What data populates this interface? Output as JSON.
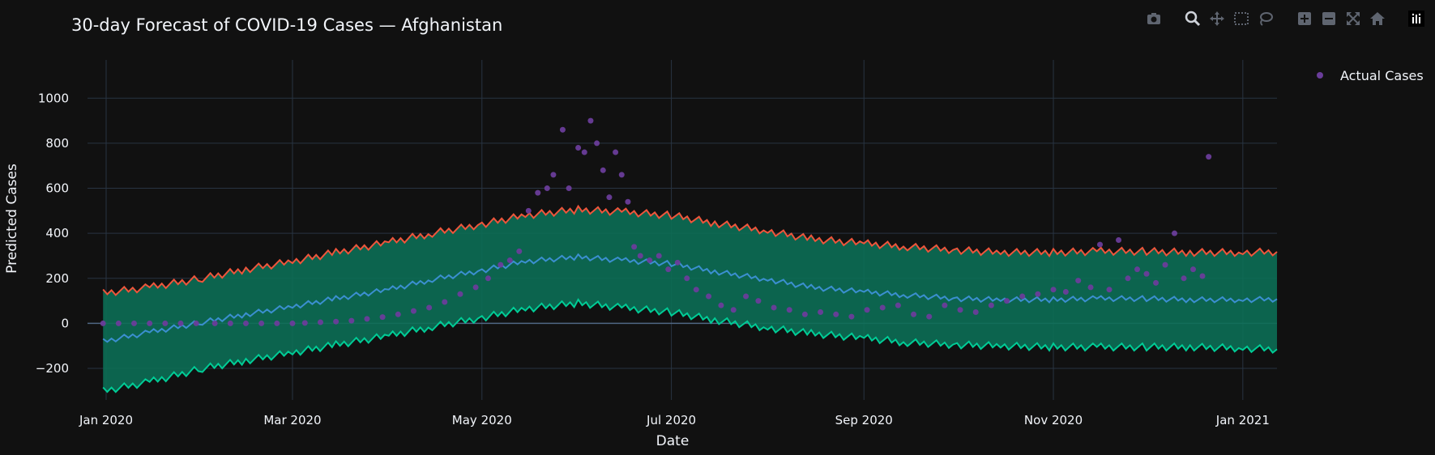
{
  "title": "30-day Forecast of COVID-19 Cases — Afghanistan",
  "colors": {
    "background": "#111111",
    "grid": "#283442",
    "band_fill": "#0c6e55",
    "upper_line": "#ef553b",
    "lower_line": "#00cc96",
    "pred_line": "#3b8fd0",
    "actual_marker": "#6a3d9a",
    "text": "#f2f5fa",
    "modebar_icon": "#8a8f98"
  },
  "legend": {
    "position": "top-right",
    "entries": [
      "Actual Cases"
    ]
  },
  "modebar": {
    "buttons": [
      "camera-icon",
      "zoom-icon",
      "pan-icon",
      "box-select-icon",
      "lasso-icon",
      "zoom-in-icon",
      "zoom-out-icon",
      "autoscale-icon",
      "reset-axes-icon",
      "plotly-logo-icon"
    ]
  },
  "chart_data": {
    "type": "line",
    "title": "30-day Forecast of COVID-19 Cases — Afghanistan",
    "xlabel": "Date",
    "ylabel": "Predicted Cases",
    "xlim": [
      "2019-12-26",
      "2021-01-12"
    ],
    "ylim": [
      -340,
      1170
    ],
    "grid": true,
    "x_ticks": [
      {
        "date": "2020-01-01",
        "label": "Jan 2020"
      },
      {
        "date": "2020-03-01",
        "label": "Mar 2020"
      },
      {
        "date": "2020-05-01",
        "label": "May 2020"
      },
      {
        "date": "2020-07-01",
        "label": "Jul 2020"
      },
      {
        "date": "2020-09-01",
        "label": "Sep 2020"
      },
      {
        "date": "2020-11-01",
        "label": "Nov 2020"
      },
      {
        "date": "2021-01-01",
        "label": "Jan 2021"
      }
    ],
    "y_ticks": [
      -200,
      0,
      200,
      400,
      600,
      800,
      1000
    ],
    "y_tick_labels": [
      "−200",
      "0",
      "200",
      "400",
      "600",
      "800",
      "1000"
    ],
    "forecast": {
      "dates": [
        "2019-12-31",
        "2020-01-15",
        "2020-02-01",
        "2020-02-15",
        "2020-03-01",
        "2020-03-15",
        "2020-04-01",
        "2020-04-15",
        "2020-05-01",
        "2020-05-15",
        "2020-06-01",
        "2020-06-15",
        "2020-07-01",
        "2020-07-15",
        "2020-08-01",
        "2020-08-15",
        "2020-09-01",
        "2020-09-15",
        "2020-10-01",
        "2020-10-15",
        "2020-11-01",
        "2020-11-15",
        "2020-12-01",
        "2020-12-15",
        "2021-01-01",
        "2021-01-12"
      ],
      "upper": [
        135,
        160,
        200,
        240,
        275,
        315,
        360,
        400,
        440,
        480,
        505,
        495,
        480,
        445,
        410,
        375,
        355,
        340,
        325,
        315,
        315,
        320,
        320,
        315,
        315,
        318
      ],
      "predicted": [
        -80,
        -40,
        5,
        40,
        75,
        110,
        150,
        195,
        235,
        275,
        295,
        280,
        265,
        230,
        195,
        160,
        140,
        125,
        110,
        105,
        105,
        110,
        110,
        105,
        105,
        108
      ],
      "lower": [
        -300,
        -260,
        -200,
        -165,
        -130,
        -95,
        -55,
        -15,
        25,
        65,
        90,
        70,
        50,
        15,
        -20,
        -45,
        -65,
        -85,
        -95,
        -100,
        -105,
        -105,
        -105,
        -105,
        -110,
        -115
      ]
    },
    "series": [
      {
        "name": "Actual Cases",
        "type": "scatter",
        "x": [
          "2019-12-31",
          "2020-01-05",
          "2020-01-10",
          "2020-01-15",
          "2020-01-20",
          "2020-01-25",
          "2020-01-30",
          "2020-02-05",
          "2020-02-10",
          "2020-02-15",
          "2020-02-20",
          "2020-02-25",
          "2020-03-01",
          "2020-03-05",
          "2020-03-10",
          "2020-03-15",
          "2020-03-20",
          "2020-03-25",
          "2020-03-30",
          "2020-04-04",
          "2020-04-09",
          "2020-04-14",
          "2020-04-19",
          "2020-04-24",
          "2020-04-29",
          "2020-05-03",
          "2020-05-07",
          "2020-05-10",
          "2020-05-13",
          "2020-05-16",
          "2020-05-19",
          "2020-05-22",
          "2020-05-24",
          "2020-05-27",
          "2020-05-29",
          "2020-06-01",
          "2020-06-03",
          "2020-06-05",
          "2020-06-07",
          "2020-06-09",
          "2020-06-11",
          "2020-06-13",
          "2020-06-15",
          "2020-06-17",
          "2020-06-19",
          "2020-06-21",
          "2020-06-24",
          "2020-06-27",
          "2020-06-30",
          "2020-07-03",
          "2020-07-06",
          "2020-07-09",
          "2020-07-13",
          "2020-07-17",
          "2020-07-21",
          "2020-07-25",
          "2020-07-29",
          "2020-08-03",
          "2020-08-08",
          "2020-08-13",
          "2020-08-18",
          "2020-08-23",
          "2020-08-28",
          "2020-09-02",
          "2020-09-07",
          "2020-09-12",
          "2020-09-17",
          "2020-09-22",
          "2020-09-27",
          "2020-10-02",
          "2020-10-07",
          "2020-10-12",
          "2020-10-17",
          "2020-10-22",
          "2020-10-27",
          "2020-11-01",
          "2020-11-05",
          "2020-11-09",
          "2020-11-13",
          "2020-11-16",
          "2020-11-19",
          "2020-11-22",
          "2020-11-25",
          "2020-11-28",
          "2020-12-01",
          "2020-12-04",
          "2020-12-07",
          "2020-12-10",
          "2020-12-13",
          "2020-12-16",
          "2020-12-19",
          "2020-12-21"
        ],
        "y": [
          0,
          0,
          0,
          0,
          0,
          0,
          0,
          0,
          0,
          0,
          0,
          0,
          0,
          2,
          5,
          8,
          12,
          20,
          28,
          40,
          55,
          70,
          95,
          130,
          160,
          200,
          260,
          280,
          320,
          500,
          580,
          600,
          660,
          860,
          600,
          780,
          760,
          900,
          800,
          680,
          560,
          760,
          660,
          540,
          340,
          300,
          280,
          300,
          240,
          270,
          200,
          150,
          120,
          80,
          60,
          120,
          100,
          70,
          60,
          40,
          50,
          40,
          30,
          60,
          70,
          80,
          40,
          30,
          80,
          60,
          50,
          80,
          100,
          120,
          130,
          150,
          140,
          190,
          160,
          350,
          150,
          370,
          200,
          240,
          220,
          180,
          260,
          400,
          200,
          240,
          210,
          740
        ]
      }
    ]
  }
}
